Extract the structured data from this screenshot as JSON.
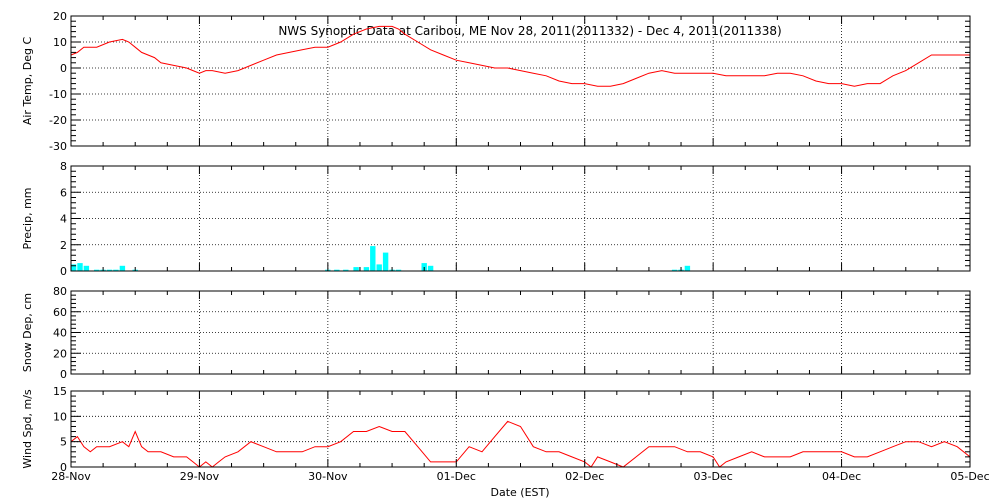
{
  "chart_data": {
    "title": "NWS Synoptic Data at Caribou, ME   Nov 28, 2011(2011332) - Dec  4, 2011(2011338)",
    "xlabel": "Date (EST)",
    "x_tick_labels": [
      "28-Nov",
      "29-Nov",
      "30-Nov",
      "01-Dec",
      "02-Dec",
      "03-Dec",
      "04-Dec",
      "05-Dec"
    ],
    "x_range_days": [
      0,
      7
    ],
    "panels": [
      {
        "id": "temp",
        "type": "line",
        "ylabel": "Air Temp, Deg C",
        "ylim": [
          -30,
          20
        ],
        "yticks": [
          -30,
          -20,
          -10,
          0,
          10,
          20
        ],
        "color": "#ff0000",
        "x": [
          0,
          0.05,
          0.1,
          0.2,
          0.3,
          0.4,
          0.45,
          0.5,
          0.55,
          0.65,
          0.7,
          0.8,
          0.9,
          0.95,
          1.0,
          1.05,
          1.1,
          1.2,
          1.3,
          1.4,
          1.5,
          1.6,
          1.7,
          1.8,
          1.9,
          2.0,
          2.05,
          2.1,
          2.2,
          2.3,
          2.4,
          2.5,
          2.55,
          2.6,
          2.7,
          2.8,
          2.9,
          3.0,
          3.1,
          3.2,
          3.3,
          3.4,
          3.5,
          3.6,
          3.7,
          3.8,
          3.9,
          4.0,
          4.1,
          4.2,
          4.3,
          4.4,
          4.5,
          4.6,
          4.7,
          4.8,
          4.9,
          5.0,
          5.1,
          5.2,
          5.3,
          5.4,
          5.5,
          5.6,
          5.7,
          5.8,
          5.9,
          6.0,
          6.1,
          6.2,
          6.3,
          6.4,
          6.5,
          6.6,
          6.7,
          6.8,
          6.9,
          7.0
        ],
        "y": [
          5,
          6,
          8,
          8,
          10,
          11,
          10,
          8,
          6,
          4,
          2,
          1,
          0,
          -1,
          -2,
          -1,
          -1,
          -2,
          -1,
          1,
          3,
          5,
          6,
          7,
          8,
          8,
          9,
          10,
          13,
          15,
          16,
          16,
          15,
          13,
          10,
          7,
          5,
          3,
          2,
          1,
          0,
          0,
          -1,
          -2,
          -3,
          -5,
          -6,
          -6,
          -7,
          -7,
          -6,
          -4,
          -2,
          -1,
          -2,
          -2,
          -2,
          -2,
          -3,
          -3,
          -3,
          -3,
          -2,
          -2,
          -3,
          -5,
          -6,
          -6,
          -7,
          -6,
          -6,
          -3,
          -1,
          2,
          5,
          5,
          5,
          5
        ],
        "series_name": ""
      },
      {
        "id": "precip",
        "type": "bar",
        "ylabel": "Precip, mm",
        "ylim": [
          0,
          8
        ],
        "yticks": [
          0,
          2,
          4,
          6,
          8
        ],
        "color": "#00ffff",
        "x": [
          0.02,
          0.07,
          0.12,
          0.2,
          0.25,
          0.3,
          0.35,
          0.4,
          0.5,
          2.0,
          2.07,
          2.14,
          2.22,
          2.3,
          2.35,
          2.4,
          2.45,
          2.5,
          2.55,
          2.75,
          2.8,
          4.7,
          4.75,
          4.8
        ],
        "y": [
          0.5,
          0.6,
          0.4,
          0.1,
          0.1,
          0.1,
          0.1,
          0.4,
          0.1,
          0.1,
          0.1,
          0.1,
          0.3,
          0.3,
          1.9,
          0.5,
          1.4,
          0.1,
          0.1,
          0.6,
          0.4,
          0.1,
          0.1,
          0.4
        ]
      },
      {
        "id": "snow",
        "type": "line",
        "ylabel": "Snow Dep, cm",
        "ylim": [
          0,
          80
        ],
        "yticks": [
          0,
          20,
          40,
          60,
          80
        ],
        "color": "#ff0000",
        "x": [],
        "y": []
      },
      {
        "id": "wind",
        "type": "line",
        "ylabel": "Wind Spd, m/s",
        "ylim": [
          0,
          15
        ],
        "yticks": [
          0,
          5,
          10,
          15
        ],
        "color": "#ff0000",
        "x": [
          0,
          0.05,
          0.1,
          0.15,
          0.2,
          0.3,
          0.4,
          0.45,
          0.5,
          0.55,
          0.6,
          0.7,
          0.8,
          0.9,
          0.95,
          1.0,
          1.05,
          1.1,
          1.15,
          1.2,
          1.3,
          1.4,
          1.5,
          1.6,
          1.7,
          1.8,
          1.9,
          2.0,
          2.1,
          2.2,
          2.3,
          2.4,
          2.5,
          2.6,
          2.7,
          2.8,
          2.9,
          3.0,
          3.1,
          3.2,
          3.3,
          3.4,
          3.5,
          3.6,
          3.7,
          3.8,
          3.9,
          4.0,
          4.05,
          4.1,
          4.2,
          4.3,
          4.4,
          4.5,
          4.6,
          4.7,
          4.8,
          4.9,
          5.0,
          5.05,
          5.1,
          5.2,
          5.3,
          5.4,
          5.5,
          5.6,
          5.7,
          5.8,
          5.9,
          6.0,
          6.1,
          6.2,
          6.3,
          6.4,
          6.5,
          6.6,
          6.7,
          6.8,
          6.9,
          7.0
        ],
        "y": [
          5,
          6,
          4,
          3,
          4,
          4,
          5,
          4,
          7,
          4,
          3,
          3,
          2,
          2,
          1,
          0,
          1,
          0,
          1,
          2,
          3,
          5,
          4,
          3,
          3,
          3,
          4,
          4,
          5,
          7,
          7,
          8,
          7,
          7,
          4,
          1,
          1,
          1,
          4,
          3,
          6,
          9,
          8,
          4,
          3,
          3,
          2,
          1,
          0,
          2,
          1,
          0,
          2,
          4,
          4,
          4,
          3,
          3,
          2,
          0,
          1,
          2,
          3,
          2,
          2,
          2,
          3,
          3,
          3,
          3,
          2,
          2,
          3,
          4,
          5,
          5,
          4,
          5,
          4,
          2
        ]
      }
    ]
  }
}
